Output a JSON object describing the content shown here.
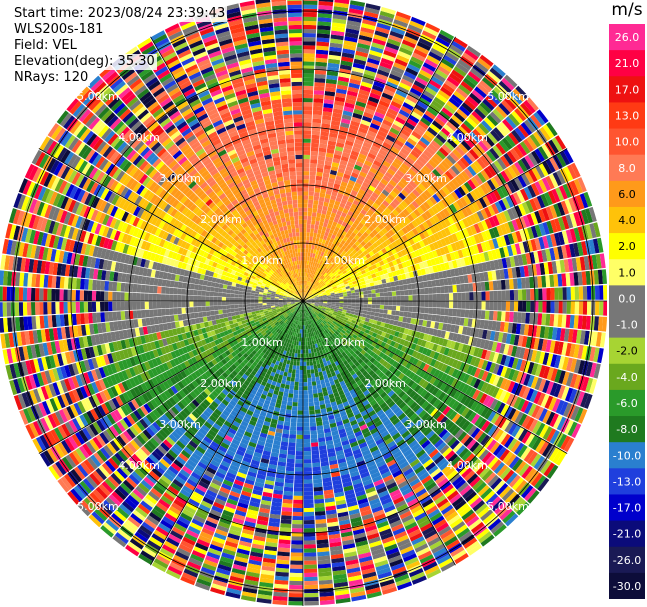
{
  "info": {
    "start_time": "Start time: 2023/08/24 23:39:43",
    "instrument": "WLS200s-181",
    "field": "Field: VEL",
    "elevation": "Elevation(deg): 35.30",
    "nrays": "NRays: 120"
  },
  "colorbar": {
    "unit": "m/s",
    "labels": [
      "26.0",
      "21.0",
      "17.0",
      "13.0",
      "10.0",
      "8.0",
      "6.0",
      "4.0",
      "2.0",
      "1.0",
      "0.0",
      "-1.0",
      "-2.0",
      "-4.0",
      "-6.0",
      "-8.0",
      "-10.0",
      "-13.0",
      "-17.0",
      "-21.0",
      "-26.0",
      "-30.0"
    ],
    "colors": [
      "#ff2a94",
      "#ff0044",
      "#ee1111",
      "#ff3a14",
      "#ff5530",
      "#ff7a55",
      "#ff9a1a",
      "#ffc20a",
      "#ffff00",
      "#ffff66",
      "#777777",
      "#777777",
      "#a7d433",
      "#6aa81e",
      "#2a9a2a",
      "#1f7a1f",
      "#2a7fcf",
      "#1f3fdd",
      "#0000cc",
      "#0b0b7a",
      "#1a1a55",
      "#0d0d3a"
    ]
  },
  "chart_data": {
    "type": "ppi_scan",
    "field": "VEL",
    "units": "m/s",
    "n_rays": 120,
    "elevation_deg": 35.3,
    "range_rings_km": [
      1.0,
      2.0,
      3.0,
      4.0,
      5.0
    ],
    "range_labels": [
      "1.00km",
      "2.00km",
      "3.00km",
      "4.00km",
      "5.00km"
    ],
    "colorbar_range": [
      -30.0,
      26.0
    ],
    "pattern": "positive (toward red) velocities in the northern sector, near-zero along the east-west axis, negative (green/blue) velocities in the southern sector, noise beyond about 3.5 km"
  }
}
